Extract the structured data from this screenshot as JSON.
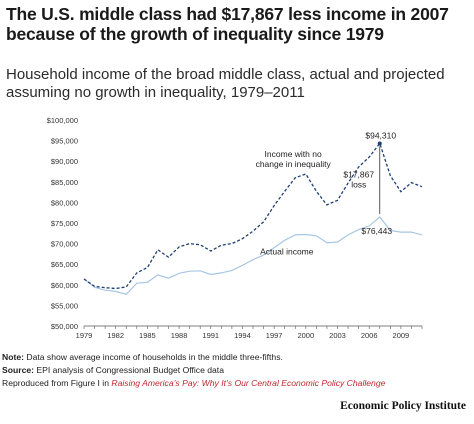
{
  "header": {
    "title": "The U.S. middle class had $17,867 less income in 2007 because of the growth of inequality since 1979",
    "subtitle": "Household income of the broad middle class, actual and projected assuming no growth in inequality, 1979–2011"
  },
  "chart_data": {
    "type": "line",
    "x": [
      1979,
      1980,
      1981,
      1982,
      1983,
      1984,
      1985,
      1986,
      1987,
      1988,
      1989,
      1990,
      1991,
      1992,
      1993,
      1994,
      1995,
      1996,
      1997,
      1998,
      1999,
      2000,
      2001,
      2002,
      2003,
      2004,
      2005,
      2006,
      2007,
      2008,
      2009,
      2010,
      2011
    ],
    "series": [
      {
        "name": "Income with no change in inequality",
        "color": "#1f3f73",
        "dash": true,
        "values": [
          61400,
          59600,
          59300,
          59100,
          59500,
          62900,
          64200,
          68500,
          66700,
          69200,
          70000,
          69700,
          68200,
          69600,
          70000,
          71200,
          73000,
          75300,
          79200,
          82700,
          86000,
          86900,
          82700,
          79400,
          80500,
          84700,
          88600,
          91000,
          94310,
          86500,
          82600,
          84800,
          83800
        ]
      },
      {
        "name": "Actual income",
        "color": "#a7c6e4",
        "dash": false,
        "values": [
          61400,
          59400,
          58700,
          58400,
          57700,
          60400,
          60600,
          62400,
          61600,
          62800,
          63300,
          63400,
          62500,
          62900,
          63500,
          64700,
          66100,
          67200,
          69000,
          70800,
          72100,
          72200,
          71900,
          70200,
          70400,
          72100,
          73400,
          74300,
          76443,
          73200,
          72800,
          72800,
          72100
        ]
      }
    ],
    "ylim": [
      50000,
      100000
    ],
    "y_ticks": [
      "$50,000",
      "$55,000",
      "$60,000",
      "$65,000",
      "$70,000",
      "$75,000",
      "$80,000",
      "$85,000",
      "$90,000",
      "$95,000",
      "$100,000"
    ],
    "x_ticks": [
      "1979",
      "1982",
      "1985",
      "1988",
      "1991",
      "1994",
      "1997",
      "2000",
      "2003",
      "2006",
      "2009"
    ],
    "annotations": {
      "peak_value": "$94,310",
      "actual_value": "$76,443",
      "gap_line1": "$17,867",
      "gap_line2": "loss",
      "nochange_line1": "Income with no",
      "nochange_line2": "change in inequality",
      "actual_label": "Actual income"
    },
    "grid": false
  },
  "footer": {
    "note_label": "Note:",
    "note_text": " Data show average income of households in the middle three-fifths.",
    "source_label": "Source:",
    "source_text": " EPI analysis of Congressional Budget Office data",
    "reproduced_text": "Reproduced from Figure I in ",
    "reproduced_title": "Raising America’s Pay: Why It’s Our Central Economic Policy Challenge",
    "brand": "Economic Policy Institute"
  }
}
